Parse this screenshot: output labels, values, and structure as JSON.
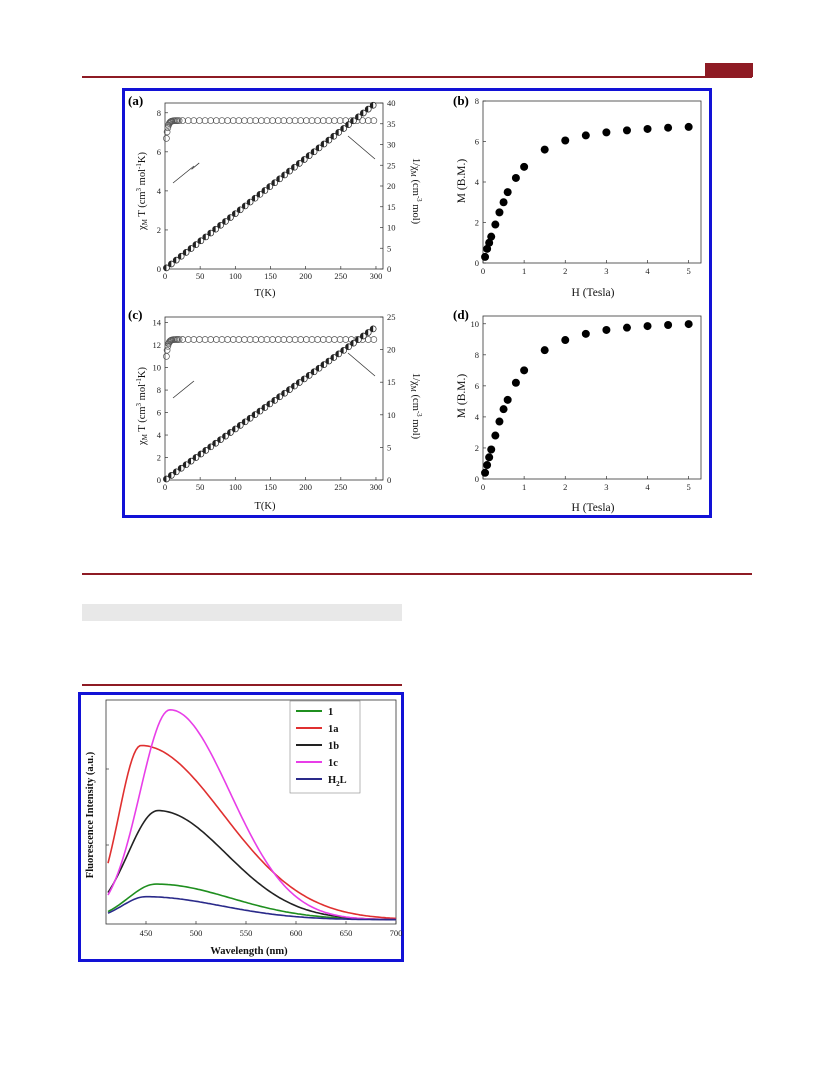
{
  "colors": {
    "rule": "#8e1b24",
    "frame": "#1212d6"
  },
  "chart_data": [
    {
      "panel": "(a)",
      "type": "scatter",
      "xlabel": "T(K)",
      "ylabel_left": "χMT (cm3 mol-1K)",
      "ylabel_right": "1/χM (cm-3 mol)",
      "xlim": [
        0,
        310
      ],
      "ylim_left": [
        0,
        8.5
      ],
      "ylim_right": [
        0,
        40
      ],
      "xticks": [
        "0",
        "50",
        "100",
        "150",
        "200",
        "250",
        "300"
      ],
      "yticks_left": [
        "0",
        "2",
        "4",
        "6",
        "8"
      ],
      "yticks_right": [
        "0",
        "5",
        "10",
        "15",
        "20",
        "25",
        "30",
        "35",
        "40"
      ],
      "plateau": 7.6,
      "slope": 0.1333
    },
    {
      "panel": "(b)",
      "type": "scatter",
      "xlabel": "H (Tesla)",
      "ylabel": "M (B.M.)",
      "xlim": [
        0,
        5.3
      ],
      "ylim": [
        0,
        8
      ],
      "xticks": [
        "0",
        "1",
        "2",
        "3",
        "4",
        "5"
      ],
      "yticks": [
        "0",
        "2",
        "4",
        "6",
        "8"
      ],
      "x": [
        0.05,
        0.1,
        0.15,
        0.2,
        0.3,
        0.4,
        0.5,
        0.6,
        0.8,
        1.0,
        1.5,
        2.0,
        2.5,
        3.0,
        3.5,
        4.0,
        4.5,
        5.0
      ],
      "y": [
        0.3,
        0.7,
        1.0,
        1.3,
        1.9,
        2.5,
        3.0,
        3.5,
        4.2,
        4.75,
        5.6,
        6.05,
        6.3,
        6.45,
        6.55,
        6.62,
        6.68,
        6.72
      ]
    },
    {
      "panel": "(c)",
      "type": "scatter",
      "xlabel": "T(K)",
      "ylabel_left": "χMT (cm3 mol-1K)",
      "ylabel_right": "1/χM (cm-3 mol)",
      "xlim": [
        0,
        310
      ],
      "ylim_left": [
        0,
        14.5
      ],
      "ylim_right": [
        0,
        25
      ],
      "xticks": [
        "0",
        "50",
        "100",
        "150",
        "200",
        "250",
        "300"
      ],
      "yticks_left": [
        "0",
        "2",
        "4",
        "6",
        "8",
        "10",
        "12",
        "14"
      ],
      "yticks_right": [
        "0",
        "5",
        "10",
        "15",
        "20",
        "25"
      ],
      "plateau": 12.5,
      "slope": 0.0783
    },
    {
      "panel": "(d)",
      "type": "scatter",
      "xlabel": "H (Tesla)",
      "ylabel": "M (B.M.)",
      "xlim": [
        0,
        5.3
      ],
      "ylim": [
        0,
        10.5
      ],
      "xticks": [
        "0",
        "1",
        "2",
        "3",
        "4",
        "5"
      ],
      "yticks": [
        "0",
        "2",
        "4",
        "6",
        "8",
        "10"
      ],
      "x": [
        0.05,
        0.1,
        0.15,
        0.2,
        0.3,
        0.4,
        0.5,
        0.6,
        0.8,
        1.0,
        1.5,
        2.0,
        2.5,
        3.0,
        3.5,
        4.0,
        4.5,
        5.0
      ],
      "y": [
        0.4,
        0.9,
        1.4,
        1.9,
        2.8,
        3.7,
        4.5,
        5.1,
        6.2,
        7.0,
        8.3,
        8.95,
        9.35,
        9.6,
        9.75,
        9.85,
        9.92,
        9.98
      ]
    },
    {
      "type": "line",
      "xlabel": "Wavelength (nm)",
      "ylabel": "Fluorescence Intensity (a.u.)",
      "xlim": [
        410,
        700
      ],
      "ylim": [
        0,
        1
      ],
      "xticks": [
        "450",
        "500",
        "550",
        "600",
        "650",
        "700"
      ],
      "series": [
        {
          "name": "1",
          "color": "#1f8f1f",
          "peak": 460,
          "amp": 0.17,
          "wl": 28,
          "wr": 75
        },
        {
          "name": "1a",
          "color": "#e03030",
          "peak": 445,
          "amp": 0.83,
          "wl": 22,
          "wr": 82
        },
        {
          "name": "1b",
          "color": "#222222",
          "peak": 462,
          "amp": 0.52,
          "wl": 30,
          "wr": 68
        },
        {
          "name": "1c",
          "color": "#e83ee8",
          "peak": 474,
          "amp": 1.0,
          "wl": 30,
          "wr": 60
        },
        {
          "name": "H2L",
          "color": "#2a2a8a",
          "peak": 450,
          "amp": 0.11,
          "wl": 24,
          "wr": 75
        }
      ]
    }
  ]
}
